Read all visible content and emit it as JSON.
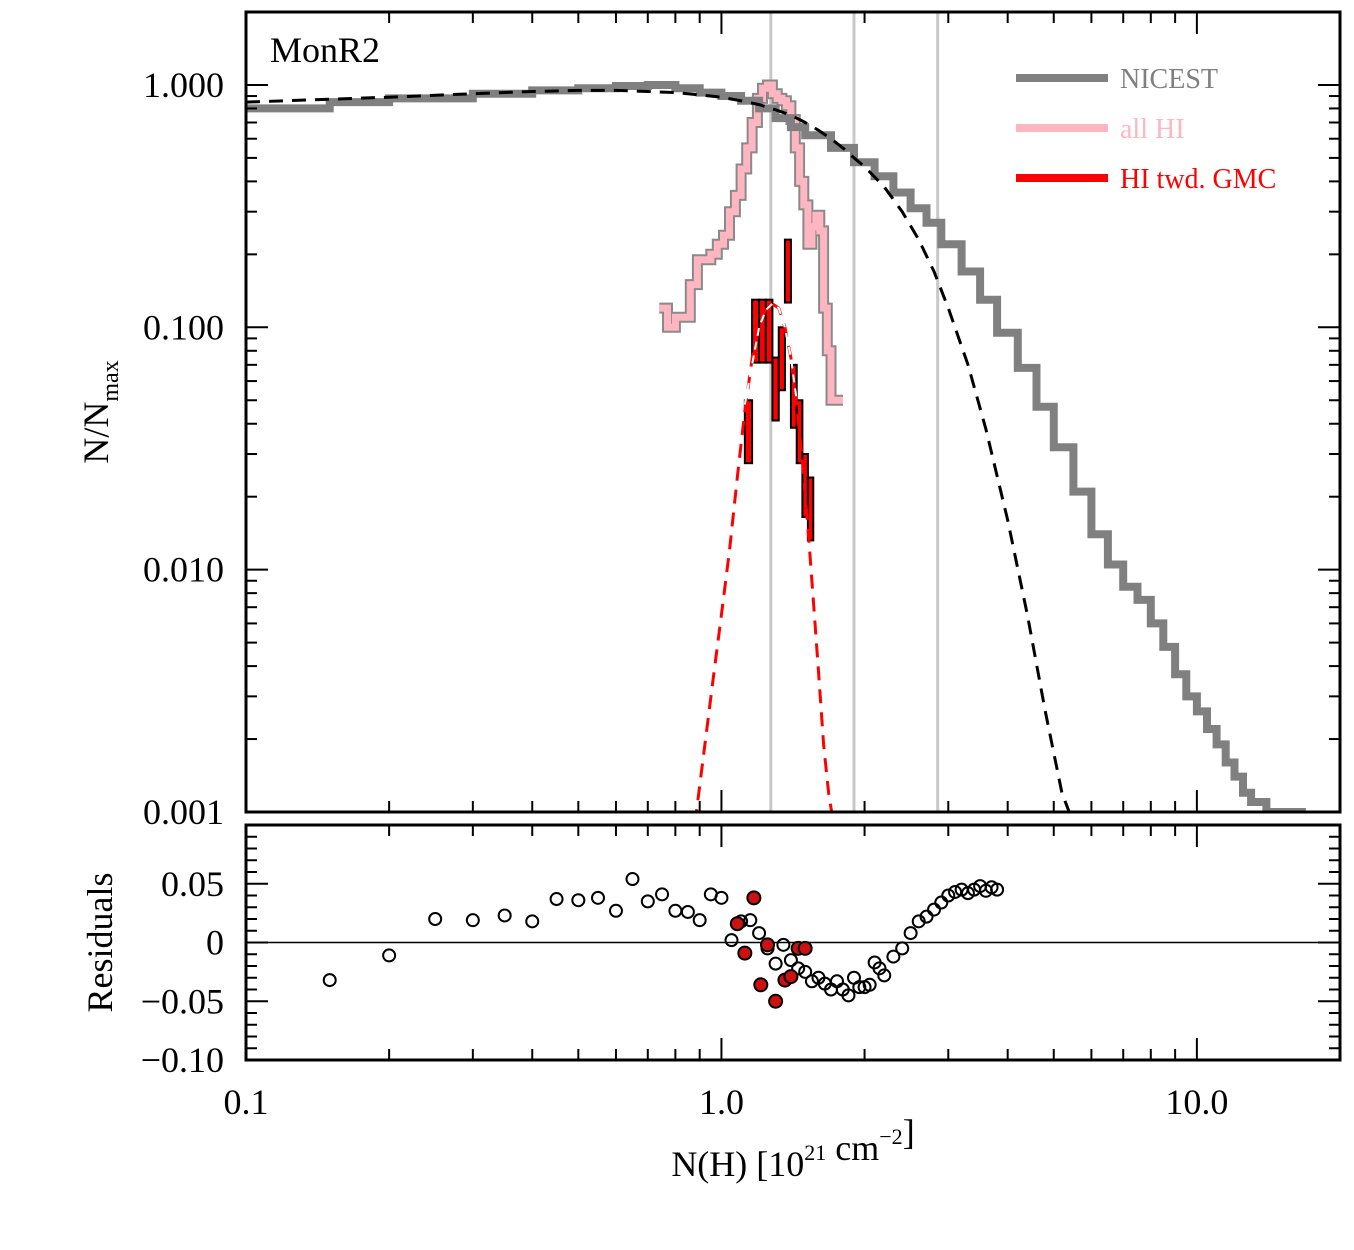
{
  "figure_label": "MonR2",
  "colors": {
    "nicest": "#808080",
    "all_hi": "#ffb6c1",
    "hi_gmc": "#ff0000",
    "fit": "#000000",
    "vline": "#c8c8c8",
    "residual_open": "#000000",
    "residual_filled": "#cc1111"
  },
  "chart_data": [
    {
      "type": "line",
      "panel": "main",
      "xlabel": "N(H) [10^21 cm^-2]",
      "ylabel": "N/N_max",
      "xscale": "log",
      "yscale": "log",
      "xlim": [
        0.1,
        20
      ],
      "ylim": [
        0.001,
        2.0
      ],
      "xticks": [
        "0.1",
        "1.0",
        "10.0"
      ],
      "yticks": [
        "0.001",
        "0.010",
        "0.100",
        "1.000"
      ],
      "legend_position": "top-right",
      "legend": [
        "NICEST",
        "all HI",
        "HI twd. GMC"
      ],
      "vertical_lines_x": [
        1.27,
        1.9,
        2.85
      ],
      "series": [
        {
          "name": "NICEST",
          "style": "step",
          "x": [
            0.1,
            0.15,
            0.2,
            0.3,
            0.4,
            0.5,
            0.6,
            0.7,
            0.8,
            0.9,
            1.0,
            1.1,
            1.2,
            1.3,
            1.4,
            1.5,
            1.7,
            1.9,
            2.1,
            2.3,
            2.5,
            2.7,
            2.9,
            3.2,
            3.5,
            3.8,
            4.2,
            4.6,
            5.0,
            5.5,
            6.0,
            6.5,
            7.0,
            7.5,
            8.0,
            8.5,
            9.0,
            9.5,
            10.0,
            10.5,
            11.0,
            11.5,
            12.0,
            12.5,
            13.0,
            14.0,
            15.0,
            16.0
          ],
          "y": [
            0.8,
            0.85,
            0.88,
            0.92,
            0.95,
            0.97,
            0.99,
            1.0,
            0.97,
            0.93,
            0.9,
            0.86,
            0.8,
            0.73,
            0.67,
            0.62,
            0.55,
            0.48,
            0.42,
            0.36,
            0.31,
            0.27,
            0.22,
            0.17,
            0.13,
            0.095,
            0.068,
            0.047,
            0.032,
            0.021,
            0.014,
            0.0105,
            0.0085,
            0.0075,
            0.006,
            0.0048,
            0.0037,
            0.003,
            0.0026,
            0.0022,
            0.0019,
            0.0016,
            0.0014,
            0.0012,
            0.0011,
            0.001,
            0.001,
            0.001
          ]
        },
        {
          "name": "all HI",
          "style": "step",
          "x": [
            0.74,
            0.77,
            0.8,
            0.83,
            0.86,
            0.89,
            0.92,
            0.95,
            0.98,
            1.01,
            1.04,
            1.07,
            1.1,
            1.13,
            1.16,
            1.19,
            1.22,
            1.25,
            1.28,
            1.31,
            1.34,
            1.37,
            1.4,
            1.43,
            1.46,
            1.49,
            1.52,
            1.55,
            1.58,
            1.61,
            1.64,
            1.67,
            1.7
          ],
          "y": [
            0.12,
            0.1,
            0.11,
            0.11,
            0.15,
            0.19,
            0.19,
            0.2,
            0.22,
            0.24,
            0.3,
            0.35,
            0.45,
            0.55,
            0.7,
            0.88,
            0.97,
            1.0,
            0.92,
            0.88,
            0.86,
            0.82,
            0.72,
            0.55,
            0.4,
            0.32,
            0.22,
            0.26,
            0.29,
            0.25,
            0.12,
            0.08,
            0.05
          ]
        },
        {
          "name": "HI twd. GMC",
          "style": "step",
          "x": [
            1.12,
            1.16,
            1.2,
            1.24,
            1.28,
            1.32,
            1.36,
            1.4,
            1.44,
            1.48,
            1.52,
            1.56
          ],
          "y": [
            0.05,
            0.13,
            0.13,
            0.13,
            0.075,
            0.1,
            0.23,
            0.07,
            0.05,
            0.03,
            0.024,
            0.024
          ]
        },
        {
          "name": "",
          "style": "dashed",
          "x": [
            0.1,
            0.2,
            0.3,
            0.4,
            0.5,
            0.6,
            0.7,
            0.8,
            0.9,
            1.0,
            1.1,
            1.2,
            1.3,
            1.4,
            1.5,
            1.6,
            1.7,
            1.8,
            1.9,
            2.0,
            2.2,
            2.4,
            2.6,
            2.8,
            3.0,
            3.3,
            3.6,
            4.0,
            4.4,
            4.8,
            5.2,
            5.5
          ],
          "y": [
            0.85,
            0.89,
            0.92,
            0.94,
            0.95,
            0.95,
            0.94,
            0.93,
            0.91,
            0.89,
            0.86,
            0.83,
            0.79,
            0.75,
            0.7,
            0.65,
            0.6,
            0.55,
            0.5,
            0.46,
            0.38,
            0.3,
            0.23,
            0.17,
            0.12,
            0.07,
            0.038,
            0.016,
            0.0065,
            0.0026,
            0.0012,
            0.0009
          ]
        },
        {
          "name": "",
          "style": "dashed",
          "x": [
            0.88,
            0.92,
            0.96,
            1.0,
            1.04,
            1.08,
            1.12,
            1.16,
            1.2,
            1.24,
            1.28,
            1.32,
            1.36,
            1.4,
            1.44,
            1.48,
            1.52,
            1.56,
            1.6,
            1.64,
            1.68,
            1.72
          ],
          "y": [
            0.0009,
            0.0018,
            0.0035,
            0.0065,
            0.012,
            0.024,
            0.045,
            0.074,
            0.1,
            0.12,
            0.125,
            0.12,
            0.1,
            0.075,
            0.048,
            0.028,
            0.015,
            0.0075,
            0.0038,
            0.0019,
            0.0012,
            0.0009
          ]
        },
        {
          "name": "",
          "style": "dashed-white",
          "x": [
            1.12,
            1.16,
            1.2,
            1.24,
            1.28,
            1.32,
            1.36,
            1.4,
            1.44
          ],
          "y": [
            0.048,
            0.07,
            0.1,
            0.118,
            0.125,
            0.12,
            0.1,
            0.075,
            0.05
          ]
        }
      ]
    },
    {
      "type": "scatter",
      "panel": "residuals",
      "xlabel": "N(H) [10^21 cm^-2]",
      "ylabel": "Residuals",
      "xscale": "log",
      "xlim": [
        0.1,
        20
      ],
      "ylim": [
        -0.1,
        0.1
      ],
      "xticks": [
        "0.1",
        "1.0",
        "10.0"
      ],
      "yticks": [
        "−0.10",
        "−0.05",
        "0",
        "0.05"
      ],
      "zero_line": true,
      "series": [
        {
          "name": "",
          "marker": "open",
          "x": [
            0.15,
            0.2,
            0.25,
            0.3,
            0.35,
            0.4,
            0.45,
            0.5,
            0.55,
            0.6,
            0.65,
            0.7,
            0.75,
            0.8,
            0.85,
            0.9,
            0.95,
            1.0,
            1.05,
            1.1,
            1.15,
            1.2,
            1.25,
            1.3,
            1.35,
            1.4,
            1.45,
            1.5,
            1.55,
            1.6,
            1.65,
            1.7,
            1.75,
            1.8,
            1.85,
            1.9,
            1.95,
            2.0,
            2.05,
            2.1,
            2.15,
            2.2,
            2.3,
            2.4,
            2.5,
            2.6,
            2.7,
            2.8,
            2.9,
            3.0,
            3.1,
            3.2,
            3.3,
            3.4,
            3.5,
            3.6,
            3.7,
            3.8
          ],
          "y": [
            -0.032,
            -0.011,
            0.02,
            0.019,
            0.023,
            0.018,
            0.037,
            0.036,
            0.038,
            0.027,
            0.054,
            0.035,
            0.041,
            0.027,
            0.026,
            0.019,
            0.041,
            0.038,
            0.002,
            0.018,
            0.019,
            0.008,
            -0.005,
            -0.018,
            -0.002,
            -0.015,
            -0.022,
            -0.025,
            -0.033,
            -0.03,
            -0.035,
            -0.04,
            -0.033,
            -0.04,
            -0.045,
            -0.03,
            -0.038,
            -0.038,
            -0.036,
            -0.017,
            -0.022,
            -0.028,
            -0.012,
            -0.005,
            0.008,
            0.018,
            0.022,
            0.028,
            0.034,
            0.04,
            0.043,
            0.045,
            0.042,
            0.045,
            0.048,
            0.044,
            0.047,
            0.045
          ]
        },
        {
          "name": "",
          "marker": "filled",
          "x": [
            1.08,
            1.12,
            1.17,
            1.21,
            1.25,
            1.3,
            1.36,
            1.4,
            1.45,
            1.5
          ],
          "y": [
            0.016,
            -0.009,
            0.038,
            -0.036,
            -0.002,
            -0.05,
            -0.032,
            -0.029,
            -0.005,
            -0.005
          ]
        }
      ]
    }
  ]
}
